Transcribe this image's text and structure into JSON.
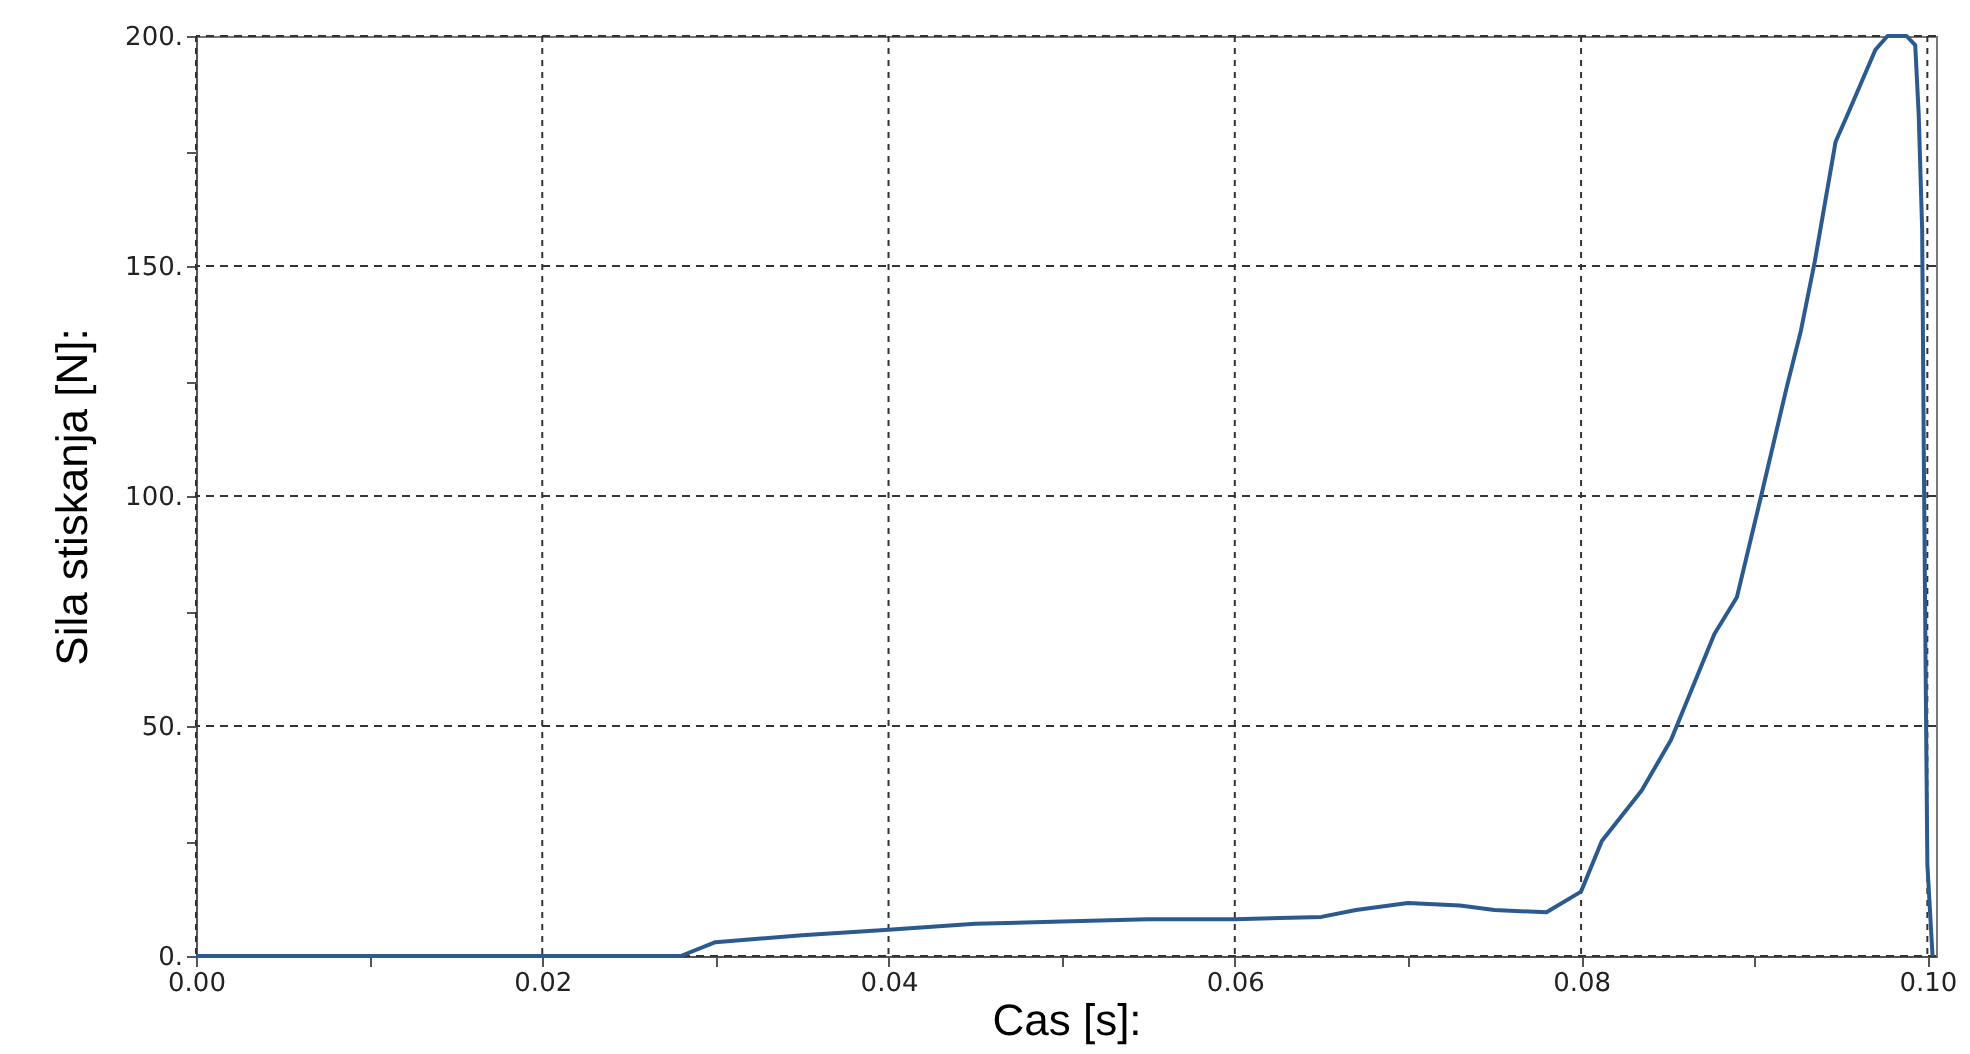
{
  "chart_data": {
    "type": "line",
    "xlabel": "Cas [s]:",
    "ylabel": "Sila stiskanja [N]:",
    "x": [
      0,
      0.028,
      0.03,
      0.035,
      0.04,
      0.045,
      0.05,
      0.055,
      0.06,
      0.065,
      0.067,
      0.07,
      0.073,
      0.075,
      0.078,
      0.08,
      0.0812,
      0.0835,
      0.0852,
      0.0877,
      0.089,
      0.0904,
      0.0919,
      0.0927,
      0.0935,
      0.0947,
      0.0954,
      0.097,
      0.0977,
      0.0988,
      0.0993,
      0.0995,
      0.0997,
      0.0998,
      0.0999,
      0.1,
      0.1003
    ],
    "series": [
      {
        "color": "#2b5b8e",
        "values": [
          0,
          0,
          3,
          4.5,
          5.7,
          7,
          7.5,
          8,
          8,
          8.5,
          10,
          11.5,
          11,
          10,
          9.5,
          14,
          25,
          36,
          47,
          70,
          78,
          100,
          124,
          136,
          151,
          177,
          183,
          197,
          200,
          200,
          198,
          183,
          158,
          107,
          63,
          20,
          0
        ]
      }
    ],
    "xlim": [
      0,
      0.1005
    ],
    "ylim": [
      0,
      200
    ],
    "xticks": [
      {
        "value": 0,
        "label": "0.00"
      },
      {
        "value": 0.01,
        "label": null
      },
      {
        "value": 0.02,
        "label": "0.02"
      },
      {
        "value": 0.03,
        "label": null
      },
      {
        "value": 0.04,
        "label": "0.04"
      },
      {
        "value": 0.05,
        "label": null
      },
      {
        "value": 0.06,
        "label": "0.06"
      },
      {
        "value": 0.07,
        "label": null
      },
      {
        "value": 0.08,
        "label": "0.08"
      },
      {
        "value": 0.09,
        "label": null
      },
      {
        "value": 0.1,
        "label": "0.10"
      }
    ],
    "yticks": [
      {
        "value": 0,
        "label": "0."
      },
      {
        "value": 25,
        "label": null
      },
      {
        "value": 50,
        "label": "50."
      },
      {
        "value": 75,
        "label": null
      },
      {
        "value": 100,
        "label": "100."
      },
      {
        "value": 125,
        "label": null
      },
      {
        "value": 150,
        "label": "150."
      },
      {
        "value": 175,
        "label": null
      },
      {
        "value": 200,
        "label": "200."
      }
    ],
    "grid": true,
    "line_style": "solid",
    "marker": "none"
  }
}
